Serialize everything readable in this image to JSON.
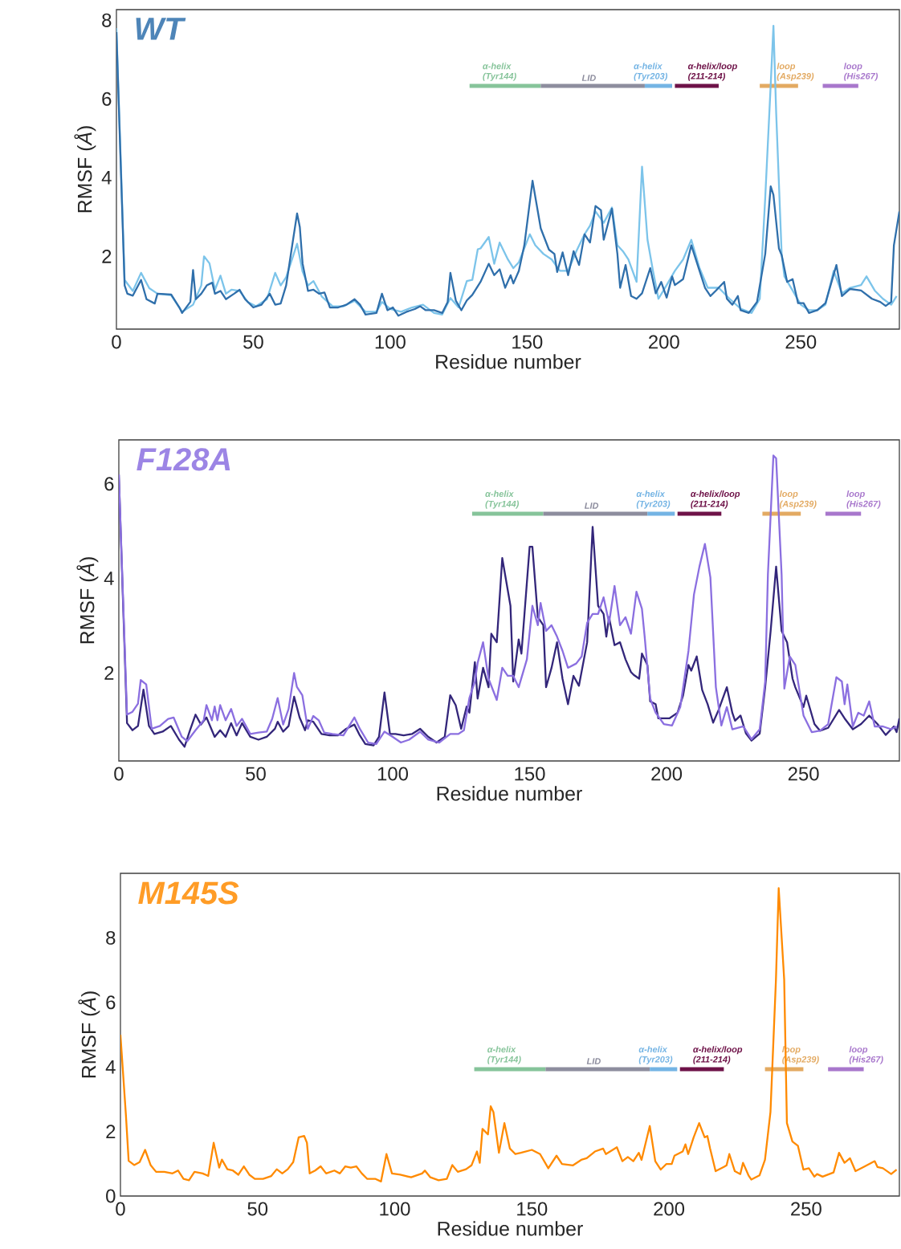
{
  "chart_data": [
    {
      "type": "line",
      "title": "WT",
      "xlabel": "Residue number",
      "ylabel": "RMSF (*Å*)",
      "xlim": [
        0,
        286
      ],
      "ylim": [
        0.15,
        8.27
      ],
      "xticks": [
        0,
        50,
        100,
        150,
        200,
        250
      ],
      "yticks": [
        2,
        4,
        6,
        8
      ],
      "series": [
        {
          "name": "α-helix (Tyr144)",
          "color": "#86c49a",
          "x": [
            129,
            155
          ],
          "values": [
            6.33,
            6.33
          ]
        },
        {
          "name": "LID",
          "color": "#8d8d9e",
          "x": [
            155,
            193
          ],
          "values": [
            6.33,
            6.33
          ]
        },
        {
          "name": "α-helix (Tyr203)",
          "color": "#74b4e4",
          "x": [
            193,
            203
          ],
          "values": [
            6.33,
            6.33
          ]
        },
        {
          "name": "α-helix/loop (211-214)",
          "color": "#6e1248",
          "x": [
            204,
            220
          ],
          "values": [
            6.33,
            6.33
          ]
        },
        {
          "name": "loop (Asp239)",
          "color": "#e3aa62",
          "x": [
            235,
            249
          ],
          "values": [
            6.33,
            6.33
          ]
        },
        {
          "name": "loop (His267)",
          "color": "#a877cc",
          "x": [
            258,
            271
          ],
          "values": [
            6.33,
            6.33
          ]
        },
        {
          "color": "#7cc4ea",
          "x": [
            0,
            3,
            6,
            9,
            12,
            15,
            20,
            24,
            28,
            31,
            32,
            34,
            36,
            38,
            40,
            42,
            45,
            48,
            51,
            55,
            58,
            60,
            62,
            64,
            66,
            68,
            70,
            72,
            75,
            79,
            83,
            87,
            91,
            95,
            97,
            100,
            104,
            108,
            112,
            116,
            119,
            122,
            125,
            128,
            130,
            132,
            133,
            136,
            138,
            140,
            143,
            145,
            147,
            151,
            153,
            156,
            159,
            162,
            165,
            168,
            171,
            173,
            175,
            178,
            181,
            183,
            185,
            187,
            190,
            192,
            194,
            196,
            198,
            201,
            204,
            207,
            210,
            213,
            216,
            220,
            224,
            228,
            232,
            235,
            237,
            239,
            240,
            241,
            243,
            244,
            247,
            250,
            253,
            256,
            259,
            262,
            265,
            268,
            272,
            274,
            277,
            280,
            283,
            285
          ],
          "values": [
            7.8,
            1.4,
            1.12,
            1.58,
            1.19,
            1.05,
            1.01,
            0.59,
            0.77,
            1.26,
            2.0,
            1.82,
            1.15,
            1.51,
            1.05,
            1.15,
            1.12,
            0.84,
            0.73,
            0.91,
            1.58,
            1.26,
            1.47,
            1.89,
            2.32,
            1.61,
            1.26,
            1.37,
            0.98,
            0.73,
            0.73,
            0.87,
            0.59,
            0.59,
            0.84,
            0.66,
            0.59,
            0.7,
            0.77,
            0.56,
            0.52,
            0.94,
            0.7,
            1.37,
            1.4,
            2.18,
            2.2,
            2.49,
            1.81,
            2.35,
            1.92,
            1.7,
            1.85,
            2.56,
            2.28,
            2.06,
            1.92,
            1.63,
            1.63,
            2.13,
            2.56,
            2.78,
            3.14,
            2.85,
            3.24,
            2.28,
            2.13,
            1.92,
            1.35,
            4.28,
            2.42,
            1.63,
            0.92,
            1.27,
            1.63,
            1.92,
            2.42,
            1.7,
            1.2,
            1.2,
            0.92,
            0.67,
            0.56,
            0.92,
            3.49,
            6.36,
            7.86,
            5.64,
            2.06,
            1.49,
            1.13,
            0.77,
            0.63,
            0.63,
            0.77,
            1.63,
            1.06,
            1.2,
            1.27,
            1.49,
            1.13,
            0.92,
            0.77,
            0.99
          ]
        },
        {
          "color": "#2f6fab",
          "x": [
            0,
            3,
            4,
            6,
            9,
            11,
            14,
            15,
            20,
            23,
            24,
            27,
            28,
            29,
            31,
            33,
            35,
            36,
            38,
            40,
            43,
            45,
            47,
            50,
            53,
            56,
            58,
            60,
            62,
            64,
            66,
            67,
            68,
            70,
            72,
            74,
            76,
            78,
            81,
            84,
            87,
            89,
            91,
            95,
            97,
            99,
            101,
            103,
            106,
            109,
            111,
            113,
            116,
            119,
            121,
            122,
            124,
            126,
            128,
            130,
            133,
            136,
            138,
            140,
            142,
            144,
            145,
            147,
            149,
            152,
            155,
            158,
            160,
            161,
            163,
            165,
            167,
            169,
            171,
            173,
            175,
            177,
            178,
            181,
            183,
            184,
            186,
            188,
            190,
            192,
            195,
            197,
            199,
            201,
            203,
            204,
            207,
            210,
            213,
            215,
            217,
            219,
            222,
            223,
            225,
            227,
            228,
            231,
            234,
            237,
            239,
            240,
            242,
            243,
            245,
            247,
            249,
            251,
            253,
            256,
            259,
            263,
            265,
            268,
            272,
            276,
            279,
            281,
            283,
            284,
            286
          ],
          "values": [
            7.7,
            1.26,
            1.05,
            1.0,
            1.4,
            0.91,
            0.8,
            1.05,
            1.03,
            0.7,
            0.56,
            0.84,
            1.65,
            0.91,
            1.05,
            1.26,
            1.33,
            1.05,
            1.12,
            0.91,
            1.05,
            1.15,
            0.91,
            0.7,
            0.77,
            1.05,
            0.77,
            0.8,
            1.26,
            2.18,
            3.09,
            2.74,
            1.82,
            1.12,
            1.15,
            1.05,
            1.08,
            0.7,
            0.7,
            0.77,
            0.91,
            0.77,
            0.52,
            0.56,
            1.05,
            0.63,
            0.7,
            0.49,
            0.59,
            0.66,
            0.73,
            0.63,
            0.63,
            0.56,
            0.84,
            1.58,
            0.87,
            0.63,
            0.88,
            1.02,
            1.35,
            1.81,
            1.52,
            1.67,
            1.2,
            1.52,
            1.31,
            1.63,
            2.28,
            3.92,
            2.71,
            2.17,
            2.06,
            1.6,
            2.1,
            1.52,
            2.13,
            1.78,
            2.56,
            2.35,
            3.28,
            3.17,
            2.42,
            3.21,
            2.06,
            1.2,
            1.78,
            0.99,
            0.92,
            1.06,
            1.7,
            1.06,
            1.35,
            0.95,
            1.49,
            1.27,
            1.42,
            2.28,
            1.63,
            1.2,
            0.99,
            1.13,
            1.35,
            0.92,
            0.77,
            0.99,
            0.63,
            0.56,
            0.84,
            2.06,
            3.78,
            3.56,
            2.2,
            2.03,
            1.35,
            1.42,
            0.81,
            0.81,
            0.56,
            0.63,
            0.81,
            1.78,
            0.99,
            1.17,
            1.13,
            0.92,
            0.84,
            0.74,
            0.84,
            2.28,
            3.14
          ]
        }
      ]
    },
    {
      "type": "line",
      "title": "F128A",
      "xlabel": "Residue number",
      "ylabel": "RMSF (*Å*)",
      "xlim": [
        0,
        285
      ],
      "ylim": [
        0.14,
        6.93
      ],
      "xticks": [
        0,
        50,
        100,
        150,
        200,
        250
      ],
      "yticks": [
        2,
        4,
        6
      ],
      "series": [
        {
          "name": "α-helix (Tyr144)",
          "color": "#86c49a",
          "x": [
            129,
            155
          ],
          "values": [
            5.37,
            5.37
          ]
        },
        {
          "name": "LID",
          "color": "#8d8d9e",
          "x": [
            155,
            193
          ],
          "values": [
            5.37,
            5.37
          ]
        },
        {
          "name": "α-helix (Tyr203)",
          "color": "#74b4e4",
          "x": [
            193,
            203
          ],
          "values": [
            5.37,
            5.37
          ]
        },
        {
          "name": "α-helix/loop (211-214)",
          "color": "#6e1248",
          "x": [
            204,
            220
          ],
          "values": [
            5.37,
            5.37
          ]
        },
        {
          "name": "loop (Asp239)",
          "color": "#e3aa62",
          "x": [
            235,
            249
          ],
          "values": [
            5.37,
            5.37
          ]
        },
        {
          "name": "loop (His267)",
          "color": "#a877cc",
          "x": [
            258,
            271
          ],
          "values": [
            5.37,
            5.37
          ]
        },
        {
          "color": "#33267a",
          "x": [
            0,
            3,
            5,
            7,
            9,
            11,
            13,
            16,
            19,
            22,
            24,
            26,
            28,
            30,
            32,
            35,
            37,
            39,
            41,
            43,
            45,
            48,
            51,
            54,
            57,
            58,
            60,
            62,
            64,
            66,
            68,
            69,
            71,
            74,
            77,
            80,
            83,
            86,
            88,
            90,
            93,
            95,
            97,
            99,
            101,
            104,
            107,
            110,
            113,
            116,
            119,
            121,
            123,
            125,
            127,
            128,
            130,
            131,
            133,
            135,
            136,
            138,
            140,
            143,
            144,
            146,
            147,
            150,
            151,
            153,
            155,
            156,
            158,
            160,
            162,
            164,
            166,
            168,
            171,
            173,
            175,
            177,
            178,
            179,
            181,
            183,
            185,
            187,
            188,
            190,
            191,
            193,
            194,
            196,
            197,
            199,
            201,
            204,
            206,
            208,
            209,
            211,
            213,
            215,
            217,
            219,
            222,
            224,
            225,
            227,
            229,
            231,
            234,
            236,
            238,
            240,
            242,
            244,
            246,
            247,
            250,
            251,
            254,
            256,
            259,
            263,
            265,
            268,
            271,
            274,
            277,
            280,
            283,
            284,
            285
          ],
          "values": [
            6.2,
            0.94,
            0.79,
            0.88,
            1.65,
            0.88,
            0.71,
            0.76,
            0.88,
            0.59,
            0.44,
            0.79,
            1.12,
            0.91,
            1.06,
            0.65,
            0.79,
            0.65,
            0.94,
            0.68,
            0.94,
            0.65,
            0.59,
            0.65,
            0.82,
            0.97,
            0.76,
            0.88,
            1.5,
            1.06,
            0.79,
            1.0,
            0.97,
            0.71,
            0.68,
            0.68,
            0.82,
            0.91,
            0.68,
            0.5,
            0.47,
            0.65,
            1.59,
            0.71,
            0.71,
            0.68,
            0.71,
            0.82,
            0.65,
            0.53,
            0.65,
            1.53,
            1.32,
            0.82,
            1.29,
            1.16,
            2.23,
            1.46,
            2.11,
            1.7,
            2.83,
            2.65,
            4.43,
            3.42,
            1.82,
            2.71,
            2.41,
            4.67,
            4.67,
            3.18,
            3.01,
            1.7,
            2.11,
            2.65,
            1.88,
            1.34,
            1.94,
            1.73,
            2.65,
            5.09,
            3.42,
            3.25,
            2.77,
            3.18,
            2.59,
            2.65,
            2.29,
            2.02,
            1.96,
            1.88,
            2.41,
            2.17,
            1.4,
            1.34,
            1.04,
            1.04,
            1.04,
            1.16,
            1.52,
            2.17,
            2.05,
            2.35,
            1.64,
            1.34,
            0.95,
            1.22,
            1.7,
            1.16,
            0.99,
            1.1,
            0.72,
            0.57,
            0.72,
            1.7,
            2.89,
            4.25,
            2.89,
            2.65,
            1.88,
            1.7,
            1.28,
            1.52,
            0.92,
            0.78,
            0.84,
            1.22,
            1.04,
            0.81,
            0.92,
            1.1,
            0.92,
            0.69,
            0.87,
            0.75,
            1.04
          ]
        },
        {
          "color": "#8b6fe0",
          "x": [
            0,
            3,
            5,
            7,
            8,
            10,
            12,
            15,
            18,
            20,
            23,
            25,
            28,
            31,
            32,
            34,
            35,
            36,
            37,
            39,
            41,
            43,
            45,
            48,
            51,
            54,
            56,
            58,
            60,
            62,
            64,
            65,
            67,
            69,
            71,
            73,
            75,
            78,
            82,
            86,
            88,
            91,
            94,
            97,
            100,
            103,
            106,
            110,
            113,
            117,
            121,
            124,
            126,
            128,
            130,
            131,
            133,
            135,
            138,
            140,
            142,
            144,
            146,
            149,
            151,
            153,
            154,
            156,
            158,
            160,
            162,
            164,
            167,
            169,
            171,
            173,
            175,
            177,
            179,
            181,
            183,
            185,
            187,
            189,
            191,
            192,
            194,
            196,
            199,
            202,
            205,
            208,
            210,
            212,
            214,
            216,
            218,
            220,
            222,
            224,
            228,
            231,
            234,
            236,
            237,
            239,
            240,
            242,
            243,
            245,
            247,
            250,
            253,
            256,
            259,
            262,
            264,
            265,
            266,
            268,
            270,
            272,
            274,
            276,
            279,
            282,
            284
          ],
          "values": [
            6.2,
            1.12,
            1.18,
            1.35,
            1.85,
            1.76,
            0.82,
            0.88,
            1.03,
            1.06,
            0.65,
            0.56,
            0.79,
            1.0,
            1.32,
            1.0,
            1.29,
            1.0,
            1.32,
            1.0,
            1.24,
            0.88,
            1.03,
            0.71,
            0.74,
            0.76,
            1.03,
            1.47,
            0.91,
            1.24,
            2.0,
            1.71,
            1.53,
            0.82,
            1.09,
            1.0,
            0.74,
            0.71,
            0.68,
            1.06,
            0.82,
            0.53,
            0.5,
            0.76,
            0.65,
            0.53,
            0.59,
            0.76,
            0.59,
            0.53,
            0.71,
            0.71,
            0.79,
            1.47,
            1.82,
            2.21,
            2.65,
            1.88,
            1.43,
            2.11,
            1.94,
            1.94,
            1.7,
            2.29,
            3.42,
            3.01,
            3.48,
            2.89,
            3.01,
            2.77,
            2.47,
            2.11,
            2.2,
            2.35,
            3.06,
            3.25,
            3.25,
            3.6,
            3.06,
            3.84,
            3.01,
            3.18,
            2.83,
            3.72,
            3.36,
            2.77,
            1.46,
            1.16,
            0.92,
            0.89,
            1.28,
            2.47,
            3.66,
            4.25,
            4.73,
            4.02,
            1.7,
            0.89,
            1.28,
            0.81,
            0.87,
            0.6,
            0.81,
            1.82,
            4.08,
            6.6,
            6.54,
            4.08,
            1.67,
            2.35,
            2.17,
            1.1,
            0.75,
            0.78,
            0.92,
            1.91,
            1.82,
            1.34,
            1.76,
            0.87,
            1.16,
            1.1,
            1.4,
            0.87,
            0.87,
            0.81,
            0.87
          ]
        }
      ]
    },
    {
      "type": "line",
      "title": "M145S",
      "xlabel": "Residue number",
      "ylabel": "RMSF (*Å*)",
      "xlim": [
        0,
        284
      ],
      "ylim": [
        0,
        10
      ],
      "xticks": [
        0,
        50,
        100,
        150,
        200,
        250
      ],
      "yticks": [
        0,
        2,
        4,
        6,
        8
      ],
      "series": [
        {
          "name": "α-helix (Tyr144)",
          "color": "#86c49a",
          "x": [
            129,
            155
          ],
          "values": [
            3.93,
            3.93
          ]
        },
        {
          "name": "LID",
          "color": "#8d8d9e",
          "x": [
            155,
            193
          ],
          "values": [
            3.93,
            3.93
          ]
        },
        {
          "name": "α-helix (Tyr203)",
          "color": "#74b4e4",
          "x": [
            193,
            203
          ],
          "values": [
            3.93,
            3.93
          ]
        },
        {
          "name": "α-helix/loop (211-214)",
          "color": "#6e1248",
          "x": [
            204,
            220
          ],
          "values": [
            3.93,
            3.93
          ]
        },
        {
          "name": "loop (Asp239)",
          "color": "#e3aa62",
          "x": [
            235,
            249
          ],
          "values": [
            3.93,
            3.93
          ]
        },
        {
          "name": "loop (His267)",
          "color": "#a877cc",
          "x": [
            258,
            271
          ],
          "values": [
            3.93,
            3.93
          ]
        },
        {
          "color": "#ff8a00",
          "x": [
            0,
            2,
            3,
            5,
            7,
            9,
            11,
            13,
            16,
            19,
            21,
            23,
            25,
            27,
            30,
            32,
            34,
            36,
            37,
            39,
            41,
            43,
            45,
            47,
            49,
            52,
            55,
            57,
            59,
            61,
            63,
            65,
            67,
            68,
            69,
            71,
            73,
            75,
            78,
            80,
            82,
            84,
            86,
            88,
            90,
            93,
            95,
            97,
            99,
            102,
            106,
            110,
            111,
            113,
            116,
            119,
            121,
            123,
            126,
            128,
            130,
            131,
            132,
            134,
            135,
            136,
            138,
            140,
            142,
            144,
            146,
            150,
            153,
            156,
            159,
            161,
            165,
            168,
            170,
            173,
            176,
            177,
            181,
            183,
            185,
            187,
            189,
            190,
            193,
            195,
            197,
            199,
            201,
            202,
            205,
            206,
            207,
            209,
            211,
            213,
            214,
            215,
            217,
            220,
            221,
            222,
            224,
            226,
            227,
            229,
            230,
            233,
            235,
            237,
            239,
            240,
            242,
            243,
            245,
            247,
            249,
            251,
            253,
            254,
            256,
            260,
            262,
            264,
            266,
            268,
            271,
            275,
            276,
            278,
            281,
            283
          ],
          "values": [
            5.0,
            2.51,
            1.09,
            0.96,
            1.05,
            1.43,
            0.96,
            0.75,
            0.75,
            0.7,
            0.79,
            0.53,
            0.49,
            0.75,
            0.7,
            0.62,
            1.65,
            0.88,
            1.13,
            0.83,
            0.79,
            0.66,
            0.92,
            0.66,
            0.53,
            0.53,
            0.62,
            0.83,
            0.7,
            0.83,
            1.05,
            1.82,
            1.86,
            1.65,
            0.7,
            0.79,
            0.92,
            0.7,
            0.79,
            0.7,
            0.92,
            0.88,
            0.92,
            0.7,
            0.53,
            0.53,
            0.45,
            1.3,
            0.7,
            0.66,
            0.58,
            0.7,
            0.79,
            0.58,
            0.49,
            0.53,
            0.96,
            0.75,
            0.83,
            0.95,
            1.38,
            1.03,
            2.08,
            1.91,
            2.78,
            2.6,
            1.34,
            2.26,
            1.47,
            1.3,
            1.34,
            1.43,
            1.3,
            0.86,
            1.25,
            0.99,
            0.95,
            1.12,
            1.17,
            1.38,
            1.47,
            1.3,
            1.51,
            1.08,
            1.21,
            1.08,
            1.34,
            1.12,
            2.17,
            1.08,
            0.82,
            0.99,
            0.99,
            1.25,
            1.38,
            1.6,
            1.3,
            1.82,
            2.26,
            1.82,
            1.86,
            1.47,
            0.77,
            0.9,
            0.95,
            1.3,
            0.77,
            0.68,
            1.03,
            0.64,
            0.51,
            0.64,
            1.12,
            2.6,
            6.71,
            9.54,
            6.71,
            2.26,
            1.69,
            1.56,
            0.82,
            0.86,
            0.6,
            0.68,
            0.6,
            0.73,
            1.34,
            1.03,
            1.17,
            0.77,
            0.9,
            1.08,
            0.9,
            0.86,
            0.68,
            0.82
          ]
        }
      ]
    }
  ]
}
